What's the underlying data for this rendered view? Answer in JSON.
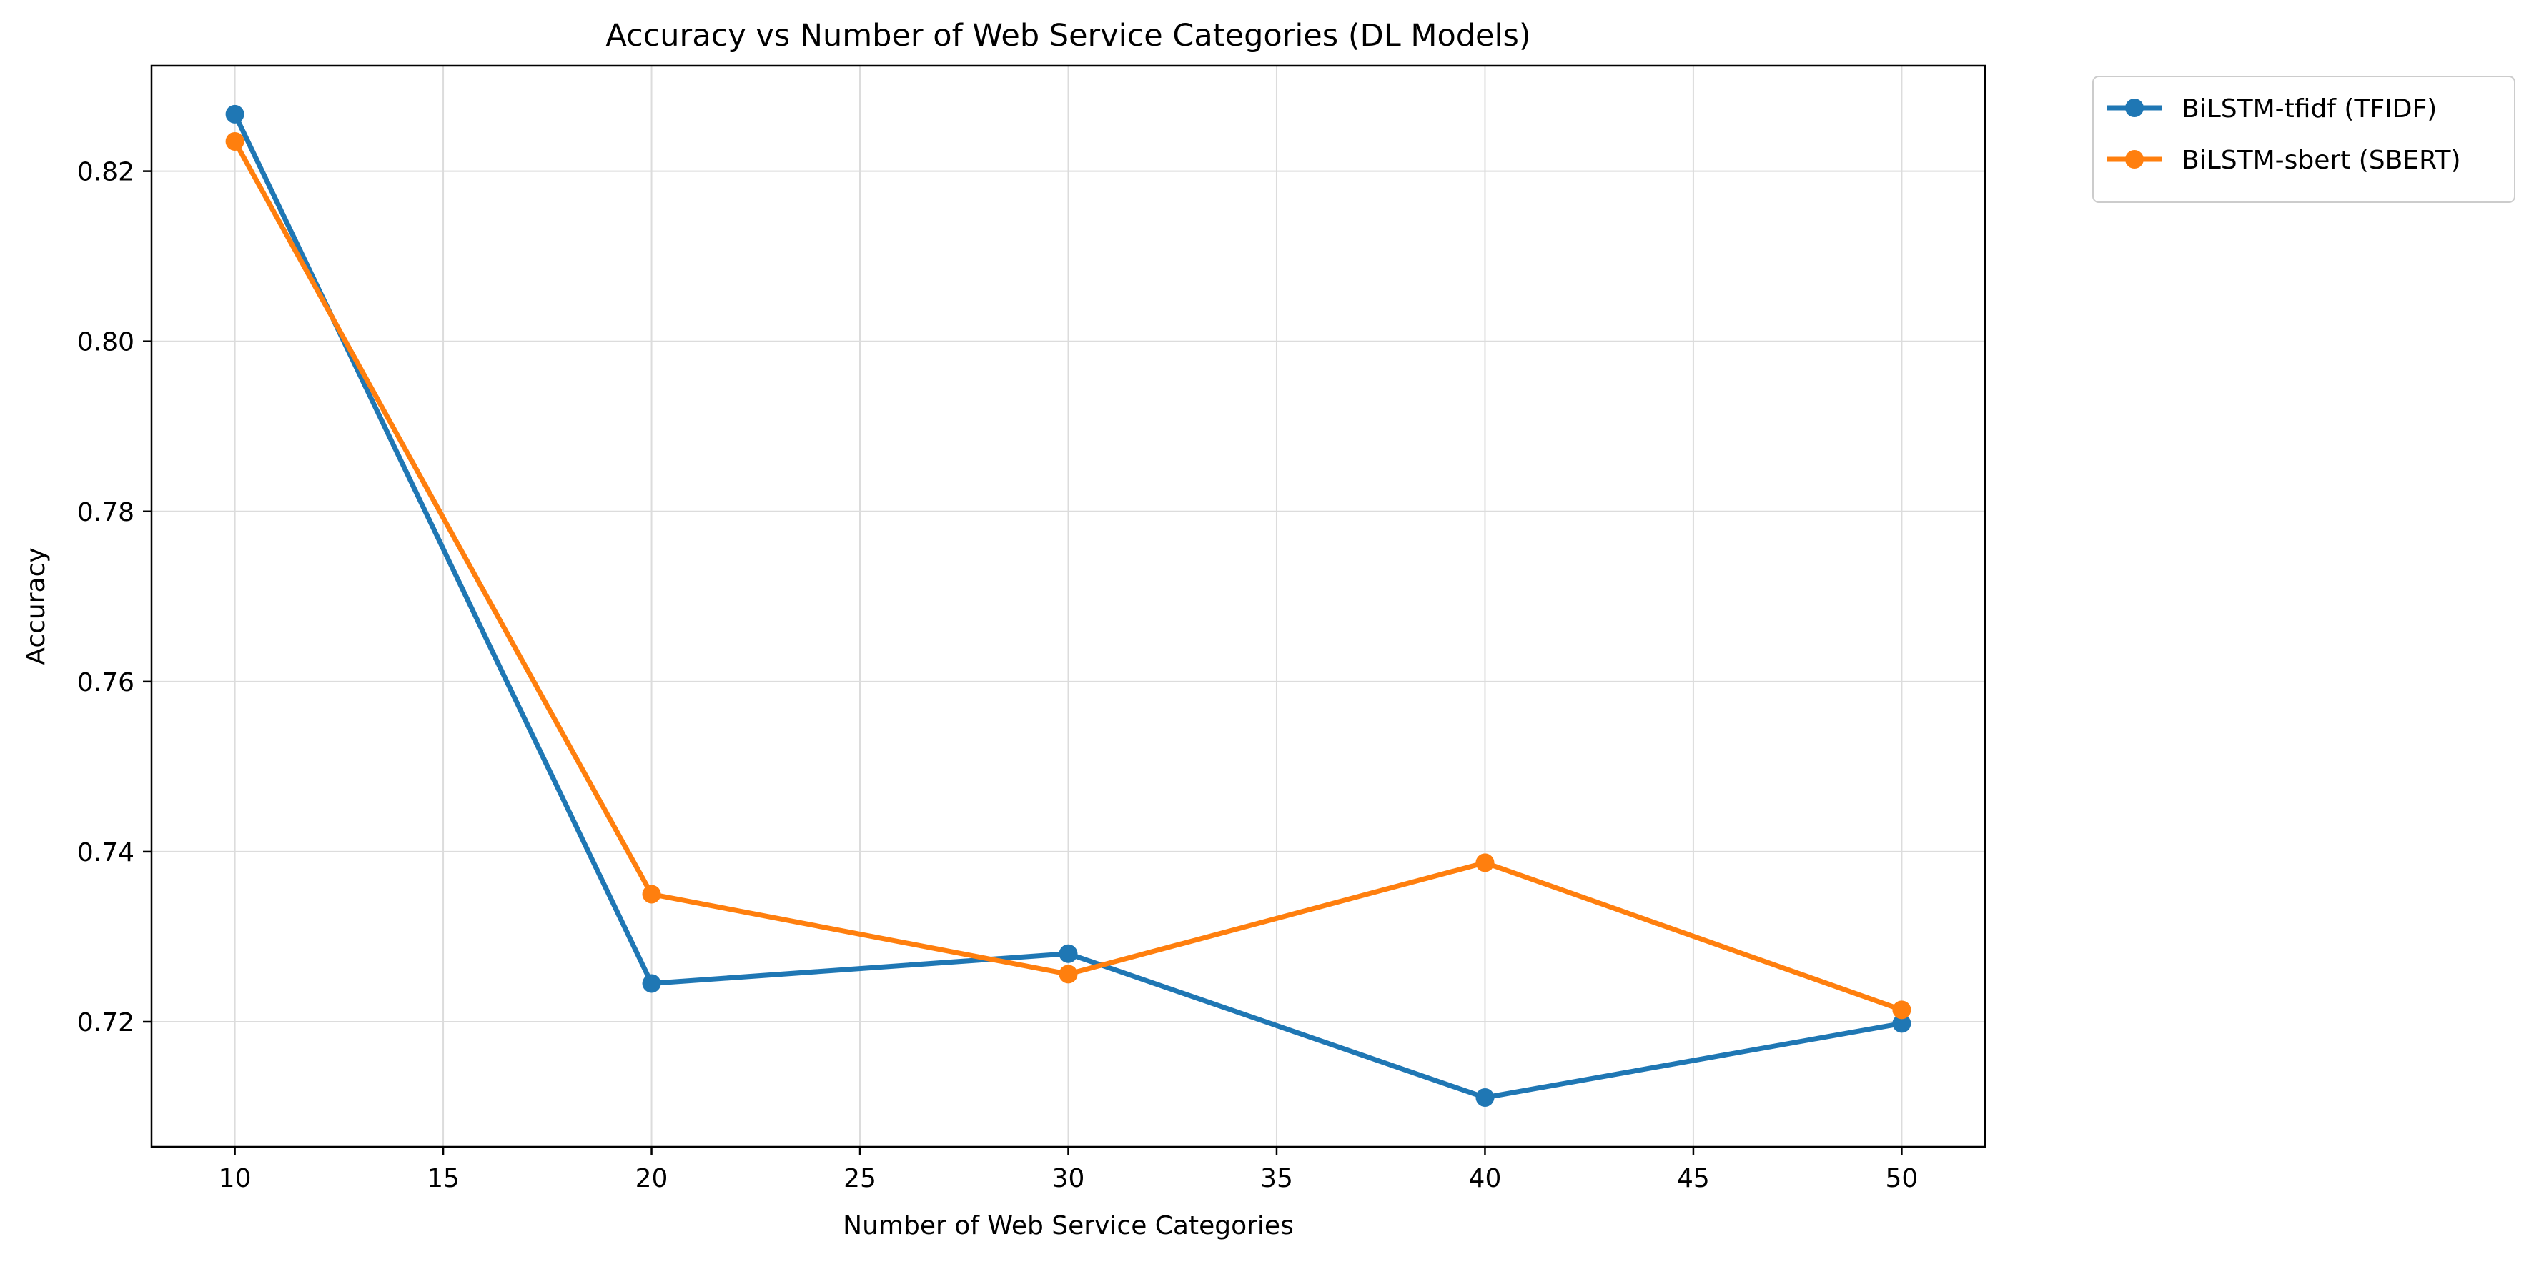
{
  "chart_data": {
    "type": "line",
    "title": "Accuracy vs Number of Web Service Categories (DL Models)",
    "xlabel": "Number of Web Service Categories",
    "ylabel": "Accuracy",
    "x": [
      10,
      20,
      30,
      40,
      50
    ],
    "xlim": [
      8,
      52
    ],
    "ylim": [
      0.7053,
      0.8324
    ],
    "xticks": [
      10,
      15,
      20,
      25,
      30,
      35,
      40,
      45,
      50
    ],
    "yticks": [
      0.72,
      0.74,
      0.76,
      0.78,
      0.8,
      0.82
    ],
    "xtick_labels": [
      "10",
      "15",
      "20",
      "25",
      "30",
      "35",
      "40",
      "45",
      "50"
    ],
    "ytick_labels": [
      "0.72",
      "0.74",
      "0.76",
      "0.78",
      "0.80",
      "0.82"
    ],
    "grid": true,
    "legend_position": "outside-top-right",
    "series": [
      {
        "name": "BiLSTM-tfidf (TFIDF)",
        "color": "#1f77b4",
        "values": [
          0.8267,
          0.7245,
          0.728,
          0.7111,
          0.7198
        ]
      },
      {
        "name": "BiLSTM-sbert (SBERT)",
        "color": "#ff7f0e",
        "values": [
          0.8235,
          0.735,
          0.7256,
          0.7387,
          0.7214
        ]
      }
    ]
  }
}
